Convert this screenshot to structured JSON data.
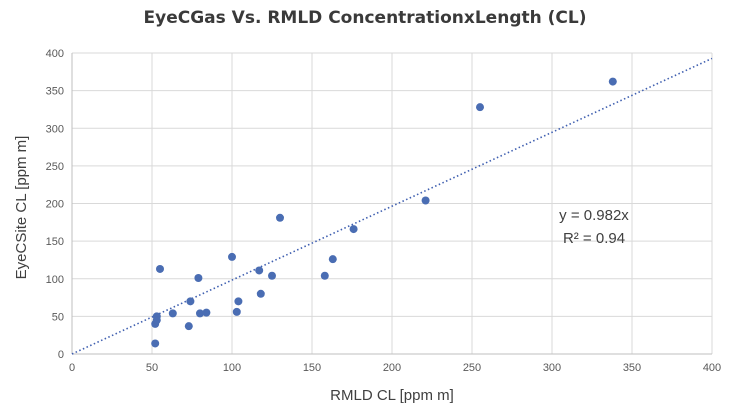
{
  "chart_data": {
    "type": "scatter",
    "title": "EyeCGas  Vs. RMLD ConcentrationxLength (CL)",
    "xlabel": "RMLD CL [ppm m]",
    "ylabel": "EyeCSite CL [ppm m]",
    "xlim": [
      0,
      400
    ],
    "ylim": [
      0,
      400
    ],
    "x_ticks": [
      0,
      50,
      100,
      150,
      200,
      250,
      300,
      350,
      400
    ],
    "y_ticks": [
      0,
      50,
      100,
      150,
      200,
      250,
      300,
      350,
      400
    ],
    "grid": true,
    "legend": "none",
    "colors": {
      "points": "#4a6db3",
      "trendline": "#3f5fb0",
      "grid": "#d9d9d9"
    },
    "series": [
      {
        "x": [
          52,
          52,
          53,
          53,
          55,
          63,
          73,
          74,
          79,
          80,
          84,
          100,
          103,
          104,
          117,
          118,
          125,
          130,
          158,
          163,
          176,
          221,
          255,
          338
        ],
        "y": [
          14,
          40,
          50,
          45,
          113,
          54,
          37,
          70,
          101,
          54,
          55,
          129,
          56,
          70,
          111,
          80,
          104,
          181,
          104,
          126,
          166,
          204,
          328,
          362
        ]
      }
    ],
    "trendline": {
      "type": "linear",
      "slope": 0.982,
      "intercept": 0
    },
    "annotations": [
      "y = 0.982x",
      "R² = 0.94"
    ]
  }
}
